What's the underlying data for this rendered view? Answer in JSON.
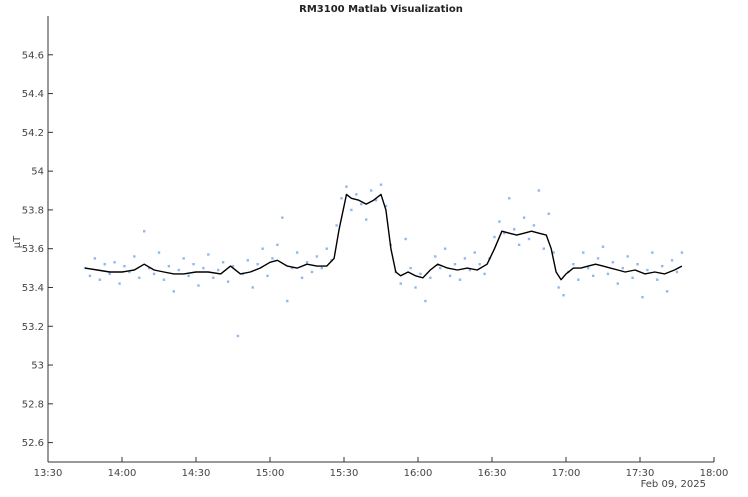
{
  "chart_data": {
    "type": "scatter",
    "title": "RM3100 Matlab Visualization",
    "xlabel": "",
    "ylabel": "μT",
    "date_label": "Feb 09, 2025",
    "xlim": [
      "13:30",
      "18:00"
    ],
    "ylim": [
      52.5,
      54.8
    ],
    "x_ticks": [
      "13:30",
      "14:00",
      "14:30",
      "15:00",
      "15:30",
      "16:00",
      "16:30",
      "17:00",
      "17:30",
      "18:00"
    ],
    "y_ticks": [
      "52.6",
      "52.8",
      "53",
      "53.2",
      "53.4",
      "53.6",
      "53.8",
      "54",
      "54.2",
      "54.4",
      "54.6"
    ],
    "grid": false,
    "legend": "none",
    "series": [
      {
        "type": "scatter",
        "color": "#8fb8ee",
        "points": [
          [
            "13:45",
            53.5
          ],
          [
            "13:47",
            53.46
          ],
          [
            "13:49",
            53.55
          ],
          [
            "13:51",
            53.44
          ],
          [
            "13:53",
            53.52
          ],
          [
            "13:55",
            53.47
          ],
          [
            "13:57",
            53.53
          ],
          [
            "13:59",
            53.42
          ],
          [
            "14:01",
            53.51
          ],
          [
            "14:03",
            53.48
          ],
          [
            "14:05",
            53.56
          ],
          [
            "14:07",
            53.45
          ],
          [
            "14:09",
            53.69
          ],
          [
            "14:11",
            53.5
          ],
          [
            "14:13",
            53.47
          ],
          [
            "14:15",
            53.58
          ],
          [
            "14:17",
            53.44
          ],
          [
            "14:19",
            53.51
          ],
          [
            "14:21",
            53.38
          ],
          [
            "14:23",
            53.49
          ],
          [
            "14:25",
            53.55
          ],
          [
            "14:27",
            53.46
          ],
          [
            "14:29",
            53.52
          ],
          [
            "14:31",
            53.41
          ],
          [
            "14:33",
            53.5
          ],
          [
            "14:35",
            53.57
          ],
          [
            "14:37",
            53.45
          ],
          [
            "14:39",
            53.49
          ],
          [
            "14:41",
            53.53
          ],
          [
            "14:43",
            53.43
          ],
          [
            "14:45",
            53.51
          ],
          [
            "14:47",
            53.15
          ],
          [
            "14:49",
            53.47
          ],
          [
            "14:51",
            53.54
          ],
          [
            "14:53",
            53.4
          ],
          [
            "14:55",
            53.52
          ],
          [
            "14:57",
            53.6
          ],
          [
            "14:59",
            53.46
          ],
          [
            "15:01",
            53.55
          ],
          [
            "15:03",
            53.62
          ],
          [
            "15:05",
            53.76
          ],
          [
            "15:07",
            53.33
          ],
          [
            "15:09",
            53.5
          ],
          [
            "15:11",
            53.58
          ],
          [
            "15:13",
            53.45
          ],
          [
            "15:15",
            53.53
          ],
          [
            "15:17",
            53.48
          ],
          [
            "15:19",
            53.56
          ],
          [
            "15:21",
            53.5
          ],
          [
            "15:23",
            53.6
          ],
          [
            "15:25",
            53.54
          ],
          [
            "15:27",
            53.72
          ],
          [
            "15:29",
            53.86
          ],
          [
            "15:31",
            53.92
          ],
          [
            "15:33",
            53.8
          ],
          [
            "15:35",
            53.88
          ],
          [
            "15:37",
            53.83
          ],
          [
            "15:39",
            53.75
          ],
          [
            "15:41",
            53.9
          ],
          [
            "15:43",
            53.85
          ],
          [
            "15:45",
            53.93
          ],
          [
            "15:47",
            53.82
          ],
          [
            "15:49",
            53.62
          ],
          [
            "15:51",
            53.48
          ],
          [
            "15:53",
            53.42
          ],
          [
            "15:55",
            53.65
          ],
          [
            "15:57",
            53.5
          ],
          [
            "15:59",
            53.4
          ],
          [
            "16:01",
            53.47
          ],
          [
            "16:03",
            53.33
          ],
          [
            "16:05",
            53.45
          ],
          [
            "16:07",
            53.56
          ],
          [
            "16:09",
            53.5
          ],
          [
            "16:11",
            53.6
          ],
          [
            "16:13",
            53.46
          ],
          [
            "16:15",
            53.52
          ],
          [
            "16:17",
            53.44
          ],
          [
            "16:19",
            53.55
          ],
          [
            "16:21",
            53.49
          ],
          [
            "16:23",
            53.58
          ],
          [
            "16:25",
            53.52
          ],
          [
            "16:27",
            53.47
          ],
          [
            "16:29",
            53.55
          ],
          [
            "16:31",
            53.66
          ],
          [
            "16:33",
            53.74
          ],
          [
            "16:35",
            53.68
          ],
          [
            "16:37",
            53.86
          ],
          [
            "16:39",
            53.7
          ],
          [
            "16:41",
            53.62
          ],
          [
            "16:43",
            53.76
          ],
          [
            "16:45",
            53.65
          ],
          [
            "16:47",
            53.72
          ],
          [
            "16:49",
            53.9
          ],
          [
            "16:51",
            53.6
          ],
          [
            "16:53",
            53.78
          ],
          [
            "16:55",
            53.58
          ],
          [
            "16:57",
            53.4
          ],
          [
            "16:59",
            53.36
          ],
          [
            "17:01",
            53.48
          ],
          [
            "17:03",
            53.52
          ],
          [
            "17:05",
            53.44
          ],
          [
            "17:07",
            53.58
          ],
          [
            "17:09",
            53.5
          ],
          [
            "17:11",
            53.46
          ],
          [
            "17:13",
            53.55
          ],
          [
            "17:15",
            53.61
          ],
          [
            "17:17",
            53.47
          ],
          [
            "17:19",
            53.53
          ],
          [
            "17:21",
            53.42
          ],
          [
            "17:23",
            53.5
          ],
          [
            "17:25",
            53.56
          ],
          [
            "17:27",
            53.45
          ],
          [
            "17:29",
            53.52
          ],
          [
            "17:31",
            53.35
          ],
          [
            "17:33",
            53.49
          ],
          [
            "17:35",
            53.58
          ],
          [
            "17:37",
            53.44
          ],
          [
            "17:39",
            53.51
          ],
          [
            "17:41",
            53.38
          ],
          [
            "17:43",
            53.54
          ],
          [
            "17:45",
            53.48
          ],
          [
            "17:47",
            53.58
          ]
        ]
      },
      {
        "type": "line",
        "color": "#000000",
        "points": [
          [
            "13:45",
            53.5
          ],
          [
            "13:50",
            53.49
          ],
          [
            "13:55",
            53.48
          ],
          [
            "14:00",
            53.48
          ],
          [
            "14:05",
            53.49
          ],
          [
            "14:09",
            53.52
          ],
          [
            "14:13",
            53.49
          ],
          [
            "14:17",
            53.48
          ],
          [
            "14:21",
            53.47
          ],
          [
            "14:25",
            53.47
          ],
          [
            "14:30",
            53.48
          ],
          [
            "14:35",
            53.48
          ],
          [
            "14:40",
            53.47
          ],
          [
            "14:44",
            53.51
          ],
          [
            "14:48",
            53.47
          ],
          [
            "14:52",
            53.48
          ],
          [
            "14:56",
            53.5
          ],
          [
            "15:00",
            53.53
          ],
          [
            "15:03",
            53.54
          ],
          [
            "15:07",
            53.51
          ],
          [
            "15:11",
            53.5
          ],
          [
            "15:15",
            53.52
          ],
          [
            "15:19",
            53.51
          ],
          [
            "15:23",
            53.51
          ],
          [
            "15:26",
            53.55
          ],
          [
            "15:28",
            53.7
          ],
          [
            "15:31",
            53.88
          ],
          [
            "15:33",
            53.86
          ],
          [
            "15:36",
            53.85
          ],
          [
            "15:39",
            53.83
          ],
          [
            "15:42",
            53.85
          ],
          [
            "15:45",
            53.88
          ],
          [
            "15:47",
            53.8
          ],
          [
            "15:49",
            53.6
          ],
          [
            "15:51",
            53.48
          ],
          [
            "15:53",
            53.46
          ],
          [
            "15:56",
            53.48
          ],
          [
            "15:59",
            53.46
          ],
          [
            "16:02",
            53.45
          ],
          [
            "16:05",
            53.49
          ],
          [
            "16:08",
            53.52
          ],
          [
            "16:12",
            53.5
          ],
          [
            "16:16",
            53.49
          ],
          [
            "16:20",
            53.5
          ],
          [
            "16:24",
            53.49
          ],
          [
            "16:28",
            53.52
          ],
          [
            "16:31",
            53.6
          ],
          [
            "16:34",
            53.69
          ],
          [
            "16:37",
            53.68
          ],
          [
            "16:40",
            53.67
          ],
          [
            "16:43",
            53.68
          ],
          [
            "16:46",
            53.69
          ],
          [
            "16:49",
            53.68
          ],
          [
            "16:52",
            53.67
          ],
          [
            "16:54",
            53.6
          ],
          [
            "16:56",
            53.48
          ],
          [
            "16:58",
            53.44
          ],
          [
            "17:00",
            53.47
          ],
          [
            "17:03",
            53.5
          ],
          [
            "17:06",
            53.5
          ],
          [
            "17:09",
            53.51
          ],
          [
            "17:12",
            53.52
          ],
          [
            "17:15",
            53.51
          ],
          [
            "17:18",
            53.5
          ],
          [
            "17:21",
            53.49
          ],
          [
            "17:24",
            53.48
          ],
          [
            "17:28",
            53.49
          ],
          [
            "17:32",
            53.47
          ],
          [
            "17:36",
            53.48
          ],
          [
            "17:40",
            53.47
          ],
          [
            "17:44",
            53.49
          ],
          [
            "17:47",
            53.51
          ]
        ]
      }
    ]
  }
}
